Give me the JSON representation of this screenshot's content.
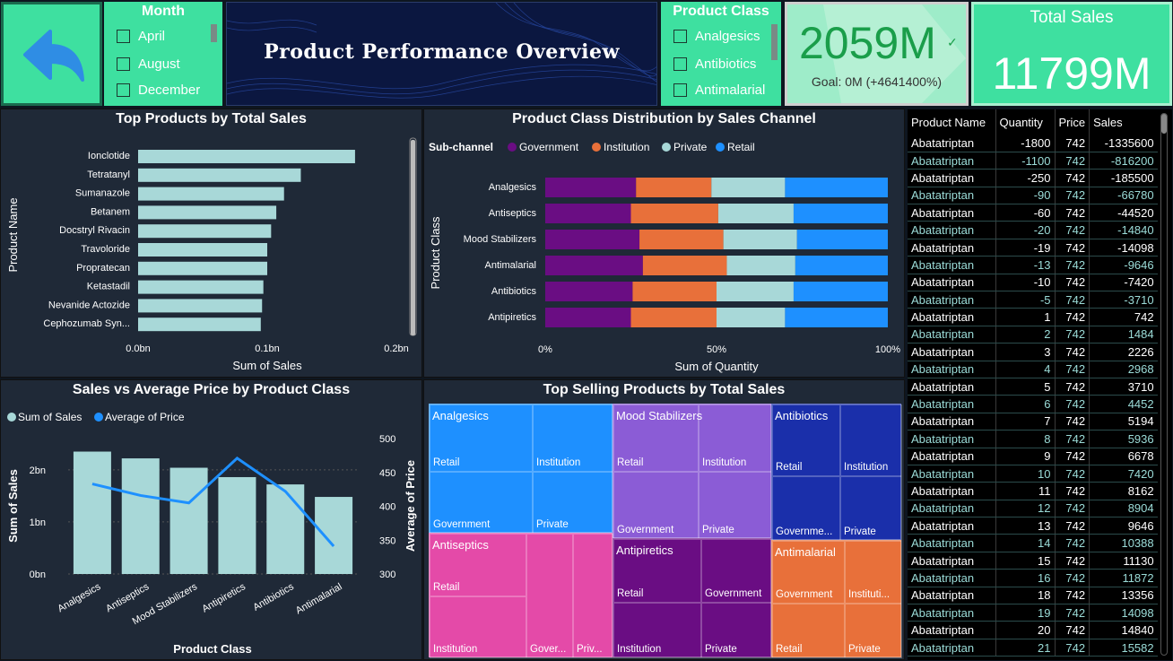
{
  "header": {
    "back_icon": "back-arrow-icon",
    "banner_title": "Product Performance Overview",
    "month_slicer": {
      "title": "Month",
      "items": [
        "April",
        "August",
        "December"
      ]
    },
    "class_slicer": {
      "title": "Product Class",
      "items": [
        "Analgesics",
        "Antibiotics",
        "Antimalarial"
      ]
    },
    "kpi": {
      "value": "2059M",
      "goal": "Goal: 0M (+4641400%)",
      "check_icon": "checkmark-icon"
    },
    "total_sales": {
      "title": "Total Sales",
      "value": "11799M"
    }
  },
  "colors": {
    "bar": "#a8d8d8",
    "government": "#6a0d83",
    "institution": "#e8703a",
    "private": "#a8d8d8",
    "retail": "#1e90ff",
    "accent_green": "#3ee0a0",
    "panel": "#1f2937"
  },
  "chart_data": [
    {
      "type": "bar",
      "title": "Top Products by Total Sales",
      "ylabel": "Product Name",
      "xlabel": "Sum of Sales",
      "categories": [
        "Ionclotide",
        "Tetratanyl",
        "Sumanazole",
        "Betanem",
        "Docstryl Rivacin",
        "Travoloride",
        "Propratecan",
        "Ketastadil",
        "Nevanide Actozide",
        "Cephozumab Syn..."
      ],
      "values": [
        0.168,
        0.126,
        0.113,
        0.107,
        0.103,
        0.1,
        0.1,
        0.097,
        0.096,
        0.095
      ],
      "xlim": [
        0,
        0.2
      ],
      "ticks": [
        "0.0bn",
        "0.1bn",
        "0.2bn"
      ]
    },
    {
      "type": "bar",
      "title": "Product Class Distribution by Sales Channel",
      "legend_title": "Sub-channel",
      "ylabel": "Product Class",
      "xlabel": "Sum of Quantity",
      "categories": [
        "Analgesics",
        "Antiseptics",
        "Mood Stabilizers",
        "Antimalarial",
        "Antibiotics",
        "Antipiretics"
      ],
      "series": [
        {
          "name": "Government",
          "values": [
            26.5,
            25,
            27.5,
            28.5,
            25.5,
            25
          ]
        },
        {
          "name": "Institution",
          "values": [
            22,
            25.5,
            24.5,
            24.5,
            24.5,
            25
          ]
        },
        {
          "name": "Private",
          "values": [
            21.5,
            22,
            21.5,
            20,
            22.5,
            20
          ]
        },
        {
          "name": "Retail",
          "values": [
            30,
            27.5,
            26.5,
            27,
            27.5,
            30
          ]
        }
      ],
      "ticks": [
        "0%",
        "50%",
        "100%"
      ]
    },
    {
      "type": "bar",
      "title": "Sales vs Average Price by Product Class",
      "legend": [
        "Sum of Sales",
        "Average of Price"
      ],
      "xlabel": "Product Class",
      "ylabel": "Sum of Sales",
      "y2label": "Average of Price",
      "categories": [
        "Analgesics",
        "Antiseptics",
        "Mood Stabilizers",
        "Antipiretics",
        "Antibiotics",
        "Antimalarial"
      ],
      "values": [
        2.35,
        2.22,
        2.04,
        1.86,
        1.72,
        1.48
      ],
      "line_values": [
        433,
        416,
        405,
        471,
        422,
        341
      ],
      "ylim": [
        0,
        2.6
      ],
      "y2lim": [
        300,
        500
      ],
      "ticks": [
        "0bn",
        "1bn",
        "2bn"
      ],
      "y2ticks": [
        "300",
        "350",
        "400",
        "450",
        "500"
      ]
    }
  ],
  "treemap": {
    "title": "Top Selling Products by Total Sales",
    "groups": [
      {
        "name": "Analgesics",
        "labels": [
          "Retail",
          "Institution",
          "Government",
          "Private"
        ]
      },
      {
        "name": "Mood Stabilizers",
        "labels": [
          "Retail",
          "Institution",
          "Government",
          "Private"
        ]
      },
      {
        "name": "Antibiotics",
        "labels": [
          "Retail",
          "Institution",
          "Governme...",
          "Private"
        ]
      },
      {
        "name": "Antiseptics",
        "labels": [
          "Retail",
          "Institution",
          "Gover...",
          "Priv..."
        ]
      },
      {
        "name": "Antipiretics",
        "labels": [
          "Retail",
          "Government",
          "Institution",
          "Private"
        ]
      },
      {
        "name": "Antimalarial",
        "labels": [
          "Government",
          "Instituti...",
          "Retail",
          "Private"
        ]
      }
    ]
  },
  "table": {
    "headers": [
      "Product Name",
      "Quantity",
      "Price",
      "Sales"
    ],
    "rows": [
      [
        "Abatatriptan",
        "-1800",
        "742",
        "-1335600"
      ],
      [
        "Abatatriptan",
        "-1100",
        "742",
        "-816200"
      ],
      [
        "Abatatriptan",
        "-250",
        "742",
        "-185500"
      ],
      [
        "Abatatriptan",
        "-90",
        "742",
        "-66780"
      ],
      [
        "Abatatriptan",
        "-60",
        "742",
        "-44520"
      ],
      [
        "Abatatriptan",
        "-20",
        "742",
        "-14840"
      ],
      [
        "Abatatriptan",
        "-19",
        "742",
        "-14098"
      ],
      [
        "Abatatriptan",
        "-13",
        "742",
        "-9646"
      ],
      [
        "Abatatriptan",
        "-10",
        "742",
        "-7420"
      ],
      [
        "Abatatriptan",
        "-5",
        "742",
        "-3710"
      ],
      [
        "Abatatriptan",
        "1",
        "742",
        "742"
      ],
      [
        "Abatatriptan",
        "2",
        "742",
        "1484"
      ],
      [
        "Abatatriptan",
        "3",
        "742",
        "2226"
      ],
      [
        "Abatatriptan",
        "4",
        "742",
        "2968"
      ],
      [
        "Abatatriptan",
        "5",
        "742",
        "3710"
      ],
      [
        "Abatatriptan",
        "6",
        "742",
        "4452"
      ],
      [
        "Abatatriptan",
        "7",
        "742",
        "5194"
      ],
      [
        "Abatatriptan",
        "8",
        "742",
        "5936"
      ],
      [
        "Abatatriptan",
        "9",
        "742",
        "6678"
      ],
      [
        "Abatatriptan",
        "10",
        "742",
        "7420"
      ],
      [
        "Abatatriptan",
        "11",
        "742",
        "8162"
      ],
      [
        "Abatatriptan",
        "12",
        "742",
        "8904"
      ],
      [
        "Abatatriptan",
        "13",
        "742",
        "9646"
      ],
      [
        "Abatatriptan",
        "14",
        "742",
        "10388"
      ],
      [
        "Abatatriptan",
        "15",
        "742",
        "11130"
      ],
      [
        "Abatatriptan",
        "16",
        "742",
        "11872"
      ],
      [
        "Abatatriptan",
        "18",
        "742",
        "13356"
      ],
      [
        "Abatatriptan",
        "19",
        "742",
        "14098"
      ],
      [
        "Abatatriptan",
        "20",
        "742",
        "14840"
      ],
      [
        "Abatatriptan",
        "21",
        "742",
        "15582"
      ]
    ]
  }
}
